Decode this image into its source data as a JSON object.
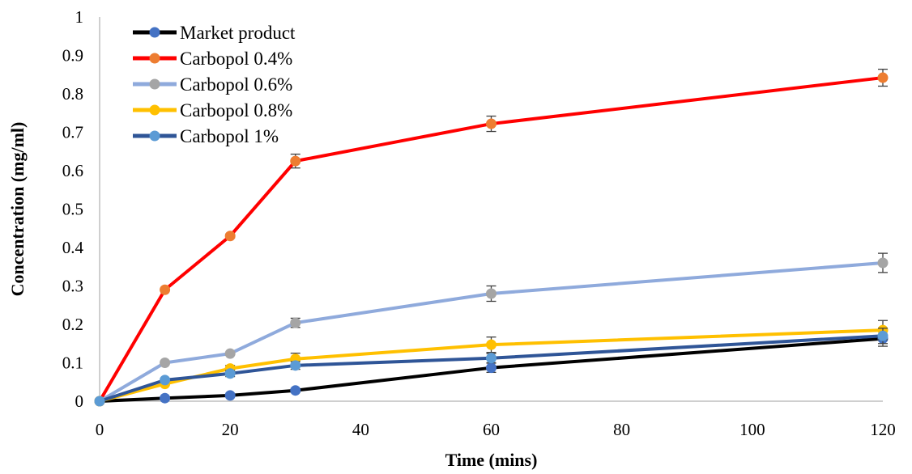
{
  "chart_data": {
    "type": "line",
    "title": "",
    "xlabel": "Time (mins)",
    "ylabel": "Concentration (mg/ml)",
    "xlim": [
      0,
      120
    ],
    "ylim": [
      0,
      1
    ],
    "x_ticks": [
      0,
      20,
      40,
      60,
      80,
      100,
      120
    ],
    "y_ticks": [
      0,
      0.1,
      0.2,
      0.3,
      0.4,
      0.5,
      0.6,
      0.7,
      0.8,
      0.9,
      1
    ],
    "y_tick_labels": [
      "0",
      "0.1",
      "0.2",
      "0.3",
      "0.4",
      "0.5",
      "0.6",
      "0.7",
      "0.8",
      "0.9",
      "1"
    ],
    "x_tick_labels": [
      "0",
      "20",
      "40",
      "60",
      "80",
      "100",
      "120"
    ],
    "grid": false,
    "legend_position": "top-left",
    "x": [
      0,
      10,
      20,
      30,
      60,
      120
    ],
    "series": [
      {
        "name": "Market product",
        "line_color": "#000000",
        "marker_color": "#4472c4",
        "values": [
          0,
          0.008,
          0.015,
          0.028,
          0.087,
          0.163
        ],
        "errors": [
          0,
          0,
          0,
          0.005,
          0.012,
          0.02
        ]
      },
      {
        "name": "Carbopol 0.4%",
        "line_color": "#ff0000",
        "marker_color": "#ed7d31",
        "values": [
          0,
          0.29,
          0.43,
          0.625,
          0.722,
          0.842
        ],
        "errors": [
          0,
          0,
          0.005,
          0.018,
          0.02,
          0.022
        ]
      },
      {
        "name": "Carbopol 0.6%",
        "line_color": "#8faadc",
        "marker_color": "#a5a5a5",
        "values": [
          0,
          0.1,
          0.124,
          0.204,
          0.28,
          0.36
        ],
        "errors": [
          0,
          0,
          0,
          0.012,
          0.02,
          0.025
        ]
      },
      {
        "name": "Carbopol 0.8%",
        "line_color": "#ffc000",
        "marker_color": "#ffc000",
        "values": [
          0,
          0.045,
          0.085,
          0.11,
          0.147,
          0.185
        ],
        "errors": [
          0,
          0,
          0.008,
          0.015,
          0.02,
          0.025
        ]
      },
      {
        "name": "Carbopol 1%",
        "line_color": "#2f5597",
        "marker_color": "#5b9bd5",
        "values": [
          0,
          0.055,
          0.072,
          0.093,
          0.112,
          0.17
        ],
        "errors": [
          0,
          0,
          0.008,
          0.01,
          0.012,
          0.02
        ]
      }
    ]
  }
}
